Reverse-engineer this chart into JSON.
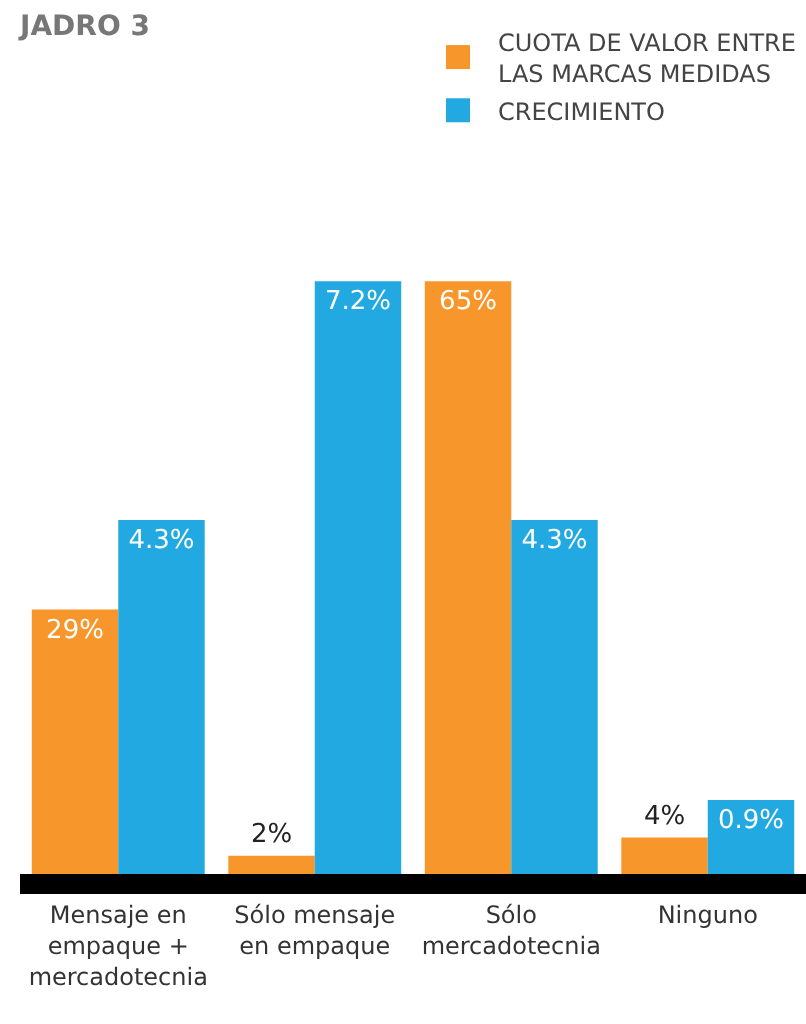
{
  "chart_data": {
    "type": "bar",
    "title": "JADRO 3",
    "categories": [
      "Mensaje en empaque + mercadotecnia",
      "Sólo mensaje en empaque",
      "Sólo mercadotecnia",
      "Ninguno"
    ],
    "series": [
      {
        "name": "CUOTA DE VALOR ENTRE LAS MARCAS MEDIDAS",
        "color": "#f7962b",
        "values": [
          29,
          2,
          65,
          4
        ],
        "value_labels": [
          "29%",
          "2%",
          "65%",
          "4%"
        ]
      },
      {
        "name": "CRECIMIENTO",
        "color": "#22a9e1",
        "axis": "y2",
        "values": [
          4.3,
          7.2,
          4.3,
          0.9
        ],
        "value_labels": [
          "4.3%",
          "7.2%",
          "4.3%",
          "0.9%"
        ]
      }
    ],
    "tick_labels": "x",
    "legend": "top right"
  }
}
